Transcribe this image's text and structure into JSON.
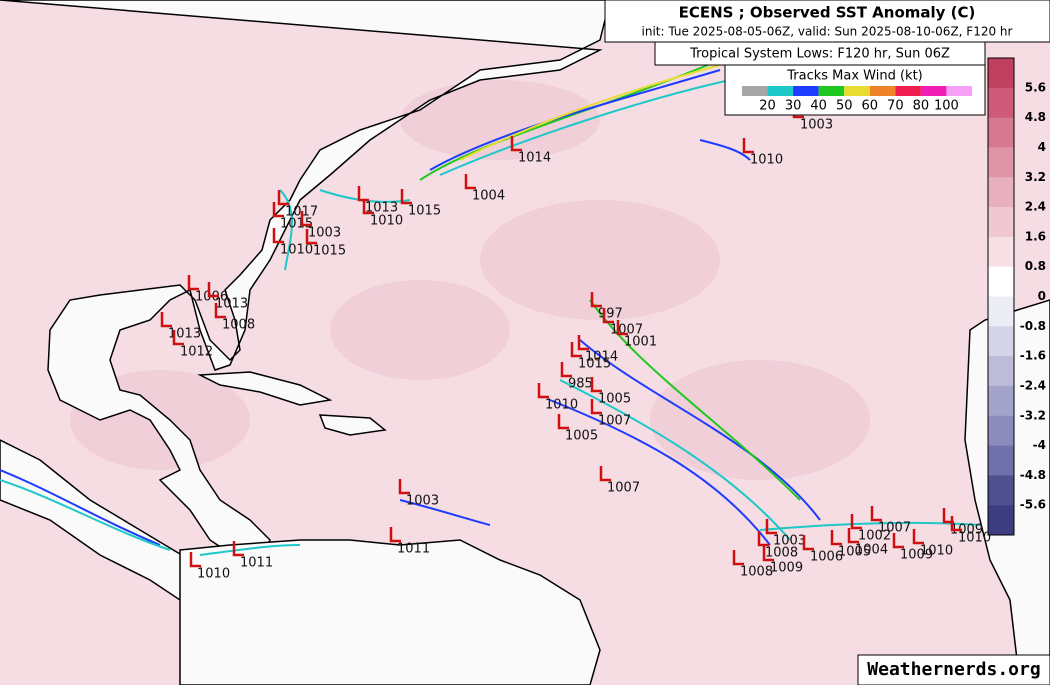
{
  "header": {
    "title": "ECENS ; Observed SST Anomaly (C)",
    "subtitle": "init: Tue 2025-08-05-06Z, valid: Sun 2025-08-10-06Z, F120 hr"
  },
  "lows_title": "Tropical System Lows: F120 hr, Sun 06Z",
  "wind_legend": {
    "title": "Tracks Max Wind (kt)",
    "labels": [
      "20",
      "30",
      "40",
      "50",
      "60",
      "70",
      "80",
      "100"
    ],
    "colors": [
      "#a6a6a6",
      "#1ec8c8",
      "#1e3cff",
      "#1ec81e",
      "#e6dc32",
      "#f08228",
      "#f01e50",
      "#f01eb4",
      "#f5a0f5"
    ]
  },
  "colorbar": {
    "labels": [
      "5.6",
      "4.8",
      "4",
      "3.2",
      "2.4",
      "1.6",
      "0.8",
      "0",
      "-0.8",
      "-1.6",
      "-2.4",
      "-3.2",
      "-4",
      "-4.8",
      "-5.6"
    ],
    "colors": [
      "#c04060",
      "#cc5a78",
      "#d67890",
      "#e094a8",
      "#e8b0bf",
      "#f0c8d2",
      "#f7e0e6",
      "#ffffff",
      "#ececf4",
      "#d4d4e6",
      "#bcbcd8",
      "#a4a4ca",
      "#8c8cbc",
      "#7070aa",
      "#50508e",
      "#3c3c80"
    ]
  },
  "lows": [
    "1003",
    "1010",
    "1014",
    "1004",
    "1015",
    "1010",
    "1013",
    "1017",
    "1015",
    "1003",
    "1010",
    "1015",
    "1006",
    "1013",
    "1008",
    "1013",
    "1012",
    "997",
    "1007",
    "1001",
    "1014",
    "1015",
    "985",
    "1005",
    "1010",
    "1007",
    "1005",
    "1007",
    "1003",
    "1011",
    "1010",
    "1011",
    "1003",
    "1008",
    "1009",
    "1008",
    "1006",
    "1005",
    "1004",
    "1002",
    "1007",
    "1009",
    "1010",
    "1009",
    "1010"
  ],
  "watermark": "Weathernerds.org"
}
